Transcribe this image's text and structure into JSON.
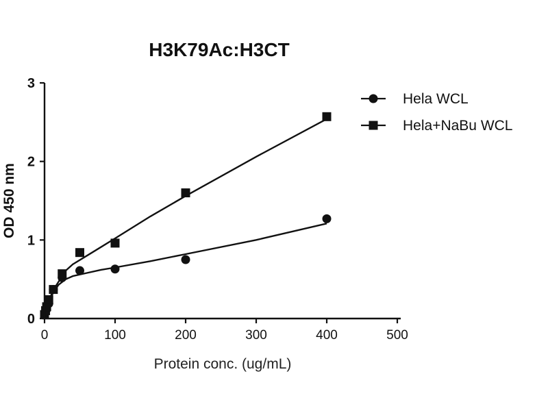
{
  "chart_data": {
    "type": "scatter",
    "title": "H3K79Ac:H3CT",
    "xlabel": "Protein conc. (ug/mL)",
    "ylabel": "OD 450 nm",
    "xlim": [
      0,
      500
    ],
    "ylim": [
      0,
      3
    ],
    "xticks": [
      "0",
      "100",
      "200",
      "300",
      "400",
      "500"
    ],
    "yticks": [
      "0",
      "1",
      "2",
      "3"
    ],
    "grid": false,
    "legend_position": "top-right",
    "series": [
      {
        "name": "Hela WCL",
        "marker": "circle",
        "x": [
          0,
          1.5,
          3,
          6,
          12.5,
          25,
          50,
          100,
          200,
          400
        ],
        "y": [
          0.06,
          0.09,
          0.12,
          0.19,
          0.37,
          0.52,
          0.61,
          0.63,
          0.75,
          1.27
        ]
      },
      {
        "name": "Hela+NaBu WCL",
        "marker": "square",
        "x": [
          0,
          1.5,
          3,
          6,
          12.5,
          25,
          50,
          100,
          200,
          400
        ],
        "y": [
          0.05,
          0.1,
          0.15,
          0.24,
          0.37,
          0.57,
          0.84,
          0.96,
          1.6,
          2.57
        ]
      }
    ],
    "fits": [
      {
        "series": "Hela WCL",
        "x": [
          0,
          2,
          5,
          10,
          15,
          20,
          30,
          40,
          60,
          80,
          100,
          150,
          200,
          300,
          400
        ],
        "y": [
          0.04,
          0.1,
          0.19,
          0.29,
          0.37,
          0.43,
          0.5,
          0.54,
          0.58,
          0.62,
          0.65,
          0.73,
          0.82,
          1.0,
          1.21
        ]
      },
      {
        "series": "Hela+NaBu WCL",
        "x": [
          0,
          2,
          5,
          10,
          15,
          20,
          30,
          40,
          60,
          80,
          100,
          150,
          200,
          300,
          400
        ],
        "y": [
          0.04,
          0.11,
          0.2,
          0.31,
          0.4,
          0.47,
          0.61,
          0.69,
          0.8,
          0.91,
          1.02,
          1.3,
          1.56,
          2.06,
          2.54
        ]
      }
    ]
  }
}
